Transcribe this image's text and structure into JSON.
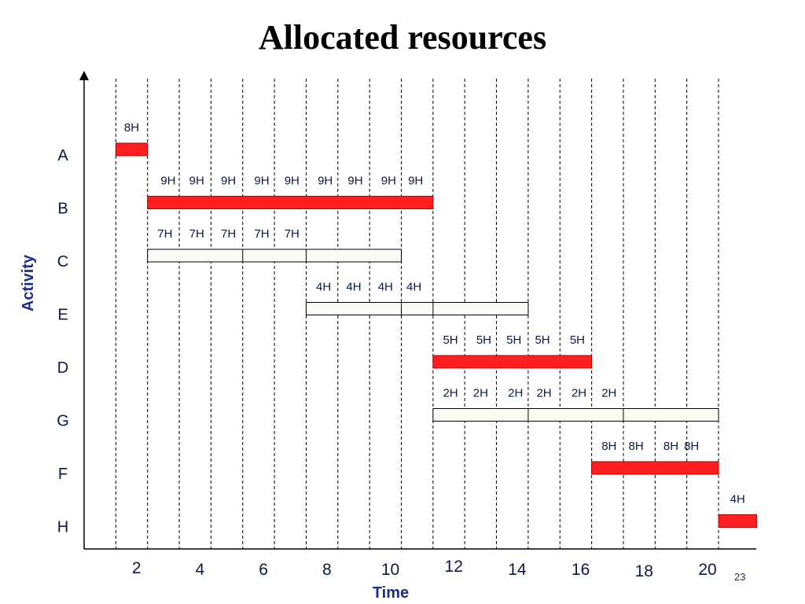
{
  "title": "Allocated resources",
  "page_number": "23",
  "colors": {
    "critical_bar": "#ff1f1f",
    "noncritical_bar": "#fbf9f4",
    "label_text": "#0a1a44",
    "axis_title": "#1a2f8a"
  },
  "chart_data": {
    "type": "gantt",
    "xlabel": "Time",
    "ylabel": "Activity",
    "x_tick_labels": [
      "2",
      "4",
      "6",
      "8",
      "10",
      "12",
      "14",
      "16",
      "18",
      "20"
    ],
    "gridlines": [
      1,
      2,
      3,
      4,
      5,
      6,
      7,
      8,
      9,
      10,
      11,
      12,
      13,
      14,
      15,
      16,
      17,
      18,
      19,
      20
    ],
    "activities": [
      {
        "name": "A",
        "start": 1,
        "end": 2,
        "style": "critical",
        "dividers": [],
        "labels": [
          "8H"
        ],
        "label_times": [
          1.5
        ]
      },
      {
        "name": "B",
        "start": 2,
        "end": 11,
        "style": "critical",
        "dividers": [],
        "labels": [
          "9H",
          "9H",
          "9H",
          "9H",
          "9H",
          "9H",
          "9H",
          "9H",
          "9H"
        ],
        "label_times": [
          2.65,
          3.55,
          4.55,
          5.6,
          6.55,
          7.6,
          8.55,
          9.6,
          10.45
        ]
      },
      {
        "name": "C",
        "start": 2,
        "end": 10,
        "style": "noncritical",
        "dividers": [
          5,
          7
        ],
        "labels": [
          "7H",
          "7H",
          "7H",
          "7H",
          "7H"
        ],
        "label_times": [
          2.55,
          3.55,
          4.55,
          5.6,
          6.55
        ]
      },
      {
        "name": "E",
        "start": 7,
        "end": 14,
        "style": "noncritical",
        "dividers": [
          10,
          11
        ],
        "labels": [
          "4H",
          "4H",
          "4H",
          "4H"
        ],
        "label_times": [
          7.55,
          8.5,
          9.5,
          10.4
        ]
      },
      {
        "name": "D",
        "start": 11,
        "end": 16,
        "style": "critical",
        "dividers": [],
        "labels": [
          "5H",
          "5H",
          "5H",
          "5H",
          "5H"
        ],
        "label_times": [
          11.55,
          12.6,
          13.55,
          14.45,
          15.55
        ]
      },
      {
        "name": "G",
        "start": 11,
        "end": 20,
        "style": "noncritical",
        "dividers": [
          14,
          17
        ],
        "labels": [
          "2H",
          "2H",
          "2H",
          "2H",
          "2H",
          "2H"
        ],
        "label_times": [
          11.55,
          12.5,
          13.6,
          14.5,
          15.6,
          16.55
        ]
      },
      {
        "name": "F",
        "start": 16,
        "end": 20,
        "style": "critical",
        "dividers": [],
        "labels": [
          "8H",
          "8H",
          "8H",
          "8H"
        ],
        "label_times": [
          16.55,
          17.4,
          18.5,
          19.15
        ]
      },
      {
        "name": "H",
        "start": 20,
        "end": 21.2,
        "style": "critical",
        "dividers": [],
        "labels": [
          "4H"
        ],
        "label_times": [
          20.6
        ]
      }
    ]
  }
}
